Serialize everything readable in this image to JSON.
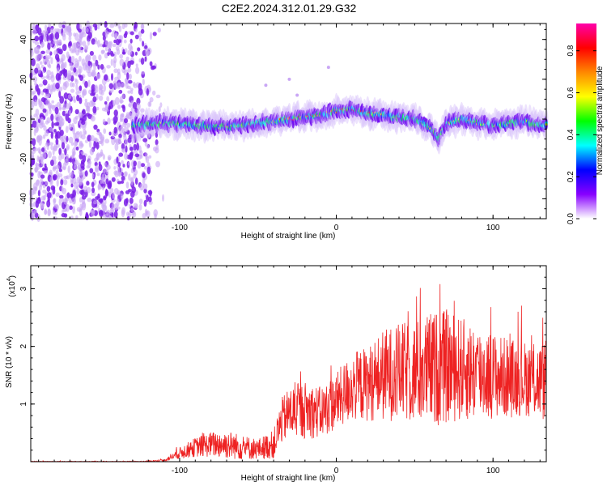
{
  "title": "C2E2.2024.312.01.29.G32",
  "chart_data": [
    {
      "type": "heatmap",
      "xlabel": "Height of straight line (km)",
      "ylabel": "Frequency (Hz)",
      "xlim": [
        -195,
        134
      ],
      "ylim": [
        -50,
        48
      ],
      "xticks": [
        "-100",
        "0",
        "100"
      ],
      "yticks": [
        "-40",
        "-20",
        "0",
        "20",
        "40"
      ],
      "noise_region_x": [
        -195,
        -110
      ],
      "signal_start_x": -130,
      "ridge": {
        "x": [
          -130,
          -110,
          -90,
          -70,
          -50,
          -30,
          -10,
          0,
          10,
          20,
          30,
          40,
          50,
          60,
          65,
          70,
          80,
          90,
          100,
          110,
          120,
          130
        ],
        "y": [
          -3,
          -2,
          -3,
          -4,
          -2,
          0,
          2,
          4,
          5,
          3,
          2,
          1,
          0,
          -4,
          -10,
          -2,
          0,
          -2,
          -3,
          -2,
          -1,
          -3
        ]
      },
      "colorbar": {
        "label": "Normalized spectral amplitude",
        "ticks": [
          "0.0",
          "0.2",
          "0.4",
          "0.6",
          "0.8"
        ],
        "range": [
          0,
          0.93
        ],
        "colors": [
          "#ffffff",
          "#8800ff",
          "#0000ff",
          "#00ffff",
          "#00ff00",
          "#ffff00",
          "#ff8800",
          "#ff0000",
          "#ff00aa"
        ]
      }
    },
    {
      "type": "line",
      "xlabel": "Height of straight line (km)",
      "ylabel": "SNR (10 * v/v)",
      "scale_note": "(x10",
      "scale_exp": "4",
      "xlim": [
        -195,
        134
      ],
      "ylim": [
        0,
        3.4
      ],
      "xticks": [
        "-100",
        "0",
        "100"
      ],
      "yticks": [
        "1",
        "2",
        "3"
      ],
      "color": "#ee2222",
      "envelope": {
        "x": [
          -195,
          -125,
          -110,
          -100,
          -90,
          -80,
          -70,
          -60,
          -50,
          -40,
          -35,
          -30,
          -20,
          -10,
          0,
          10,
          20,
          30,
          40,
          50,
          60,
          70,
          80,
          90,
          100,
          110,
          120,
          130
        ],
        "mean": [
          0.0,
          0.0,
          0.02,
          0.15,
          0.25,
          0.3,
          0.3,
          0.25,
          0.22,
          0.3,
          0.7,
          0.85,
          0.9,
          0.85,
          1.05,
          1.3,
          1.35,
          1.5,
          1.55,
          1.55,
          1.6,
          1.65,
          1.6,
          1.55,
          1.5,
          1.45,
          1.45,
          1.4
        ],
        "amp": [
          0.01,
          0.01,
          0.02,
          0.1,
          0.17,
          0.22,
          0.25,
          0.22,
          0.18,
          0.25,
          0.4,
          0.45,
          0.5,
          0.45,
          0.5,
          0.6,
          0.65,
          0.8,
          0.85,
          0.9,
          1.0,
          1.0,
          0.9,
          0.85,
          0.75,
          0.7,
          0.65,
          0.7
        ]
      }
    }
  ]
}
